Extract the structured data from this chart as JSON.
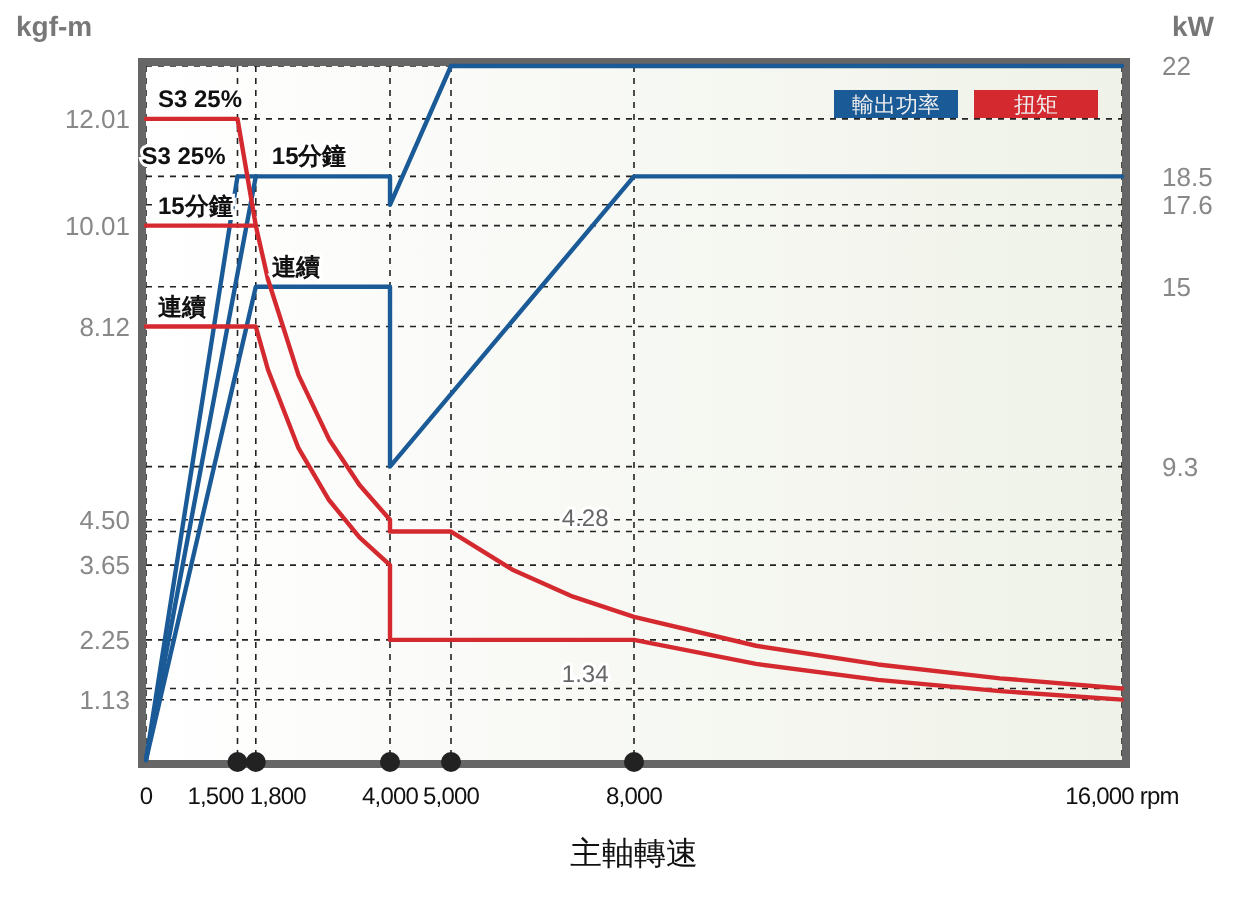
{
  "chart_data": {
    "type": "line",
    "xlabel": "主軸轉速",
    "ylabel": "kgf-m",
    "y2label": "kW",
    "annotations": [
      "輸出功率",
      "扭矩"
    ],
    "xlim": [
      0,
      16000
    ],
    "xticks": [
      0,
      {
        "value": 4000,
        "label": "4,000"
      },
      {
        "value": 5000,
        "label": "5,000"
      },
      {
        "value": 8000,
        "label": "8,000"
      },
      {
        "value": 16000,
        "label": "16,000 rpm"
      }
    ],
    "ylim": [
      0,
      13
    ],
    "yticks": [
      1.13,
      2.25,
      3.65,
      {
        "value": 4.5,
        "label": "4.50"
      },
      8.12,
      10.01,
      12.01
    ],
    "y2lim": [
      0,
      22
    ],
    "y2ticks": [
      9.3,
      15,
      17.6,
      18.5,
      22
    ],
    "ref_lines": [
      {
        "axis": "x",
        "value": 1500,
        "label": "1,500",
        "line_style": "dashed"
      },
      {
        "axis": "x",
        "value": 1800,
        "label": "1,800",
        "line_style": "dashed"
      },
      {
        "axis": "y",
        "value": 4.28,
        "label": "4.28",
        "line_style": "dashed"
      },
      {
        "axis": "y",
        "value": 1.34,
        "label": "1.34",
        "line_style": "dashed"
      }
    ],
    "grid": true,
    "line_style": "solid",
    "series": [
      {
        "name": "S3 25%",
        "axis": "y2",
        "color": "#1a5a96",
        "x": [
          0,
          1500,
          4000,
          4000,
          5000,
          16000
        ],
        "values": [
          0,
          18.5,
          18.5,
          17.6,
          22,
          22
        ]
      },
      {
        "name": "15分鐘",
        "axis": "y2",
        "color": "#1a5a96",
        "x": [
          0,
          1800
        ],
        "values": [
          0,
          18.5
        ]
      },
      {
        "name": "連續",
        "axis": "y2",
        "color": "#1a5a96",
        "x": [
          0,
          1800,
          4000,
          4000,
          8000,
          16000
        ],
        "values": [
          0,
          15,
          15,
          9.3,
          18.5,
          18.5
        ]
      },
      {
        "name": "S3 25%",
        "axis": "y",
        "color": "#d42a2f",
        "x": [
          0,
          1500,
          1800,
          2000,
          2500,
          3000,
          3500,
          4000,
          4000,
          5000,
          6000,
          7000,
          8000,
          10000,
          12000,
          14000,
          16000
        ],
        "values": [
          12.01,
          12.01,
          10.01,
          9.0,
          7.21,
          6.01,
          5.15,
          4.5,
          4.28,
          4.28,
          3.57,
          3.06,
          2.68,
          2.14,
          1.79,
          1.53,
          1.34
        ]
      },
      {
        "name": "15分鐘",
        "axis": "y",
        "color": "#d42a2f",
        "x": [
          0,
          1800
        ],
        "values": [
          10.01,
          10.01
        ]
      },
      {
        "name": "連續",
        "axis": "y",
        "color": "#d42a2f",
        "x": [
          0,
          1800,
          2000,
          2500,
          3000,
          3500,
          4000,
          4000,
          8000,
          10000,
          12000,
          14000,
          16000
        ],
        "values": [
          8.12,
          8.12,
          7.31,
          5.84,
          4.87,
          4.17,
          3.65,
          2.25,
          2.25,
          1.8,
          1.5,
          1.29,
          1.13
        ]
      }
    ]
  }
}
